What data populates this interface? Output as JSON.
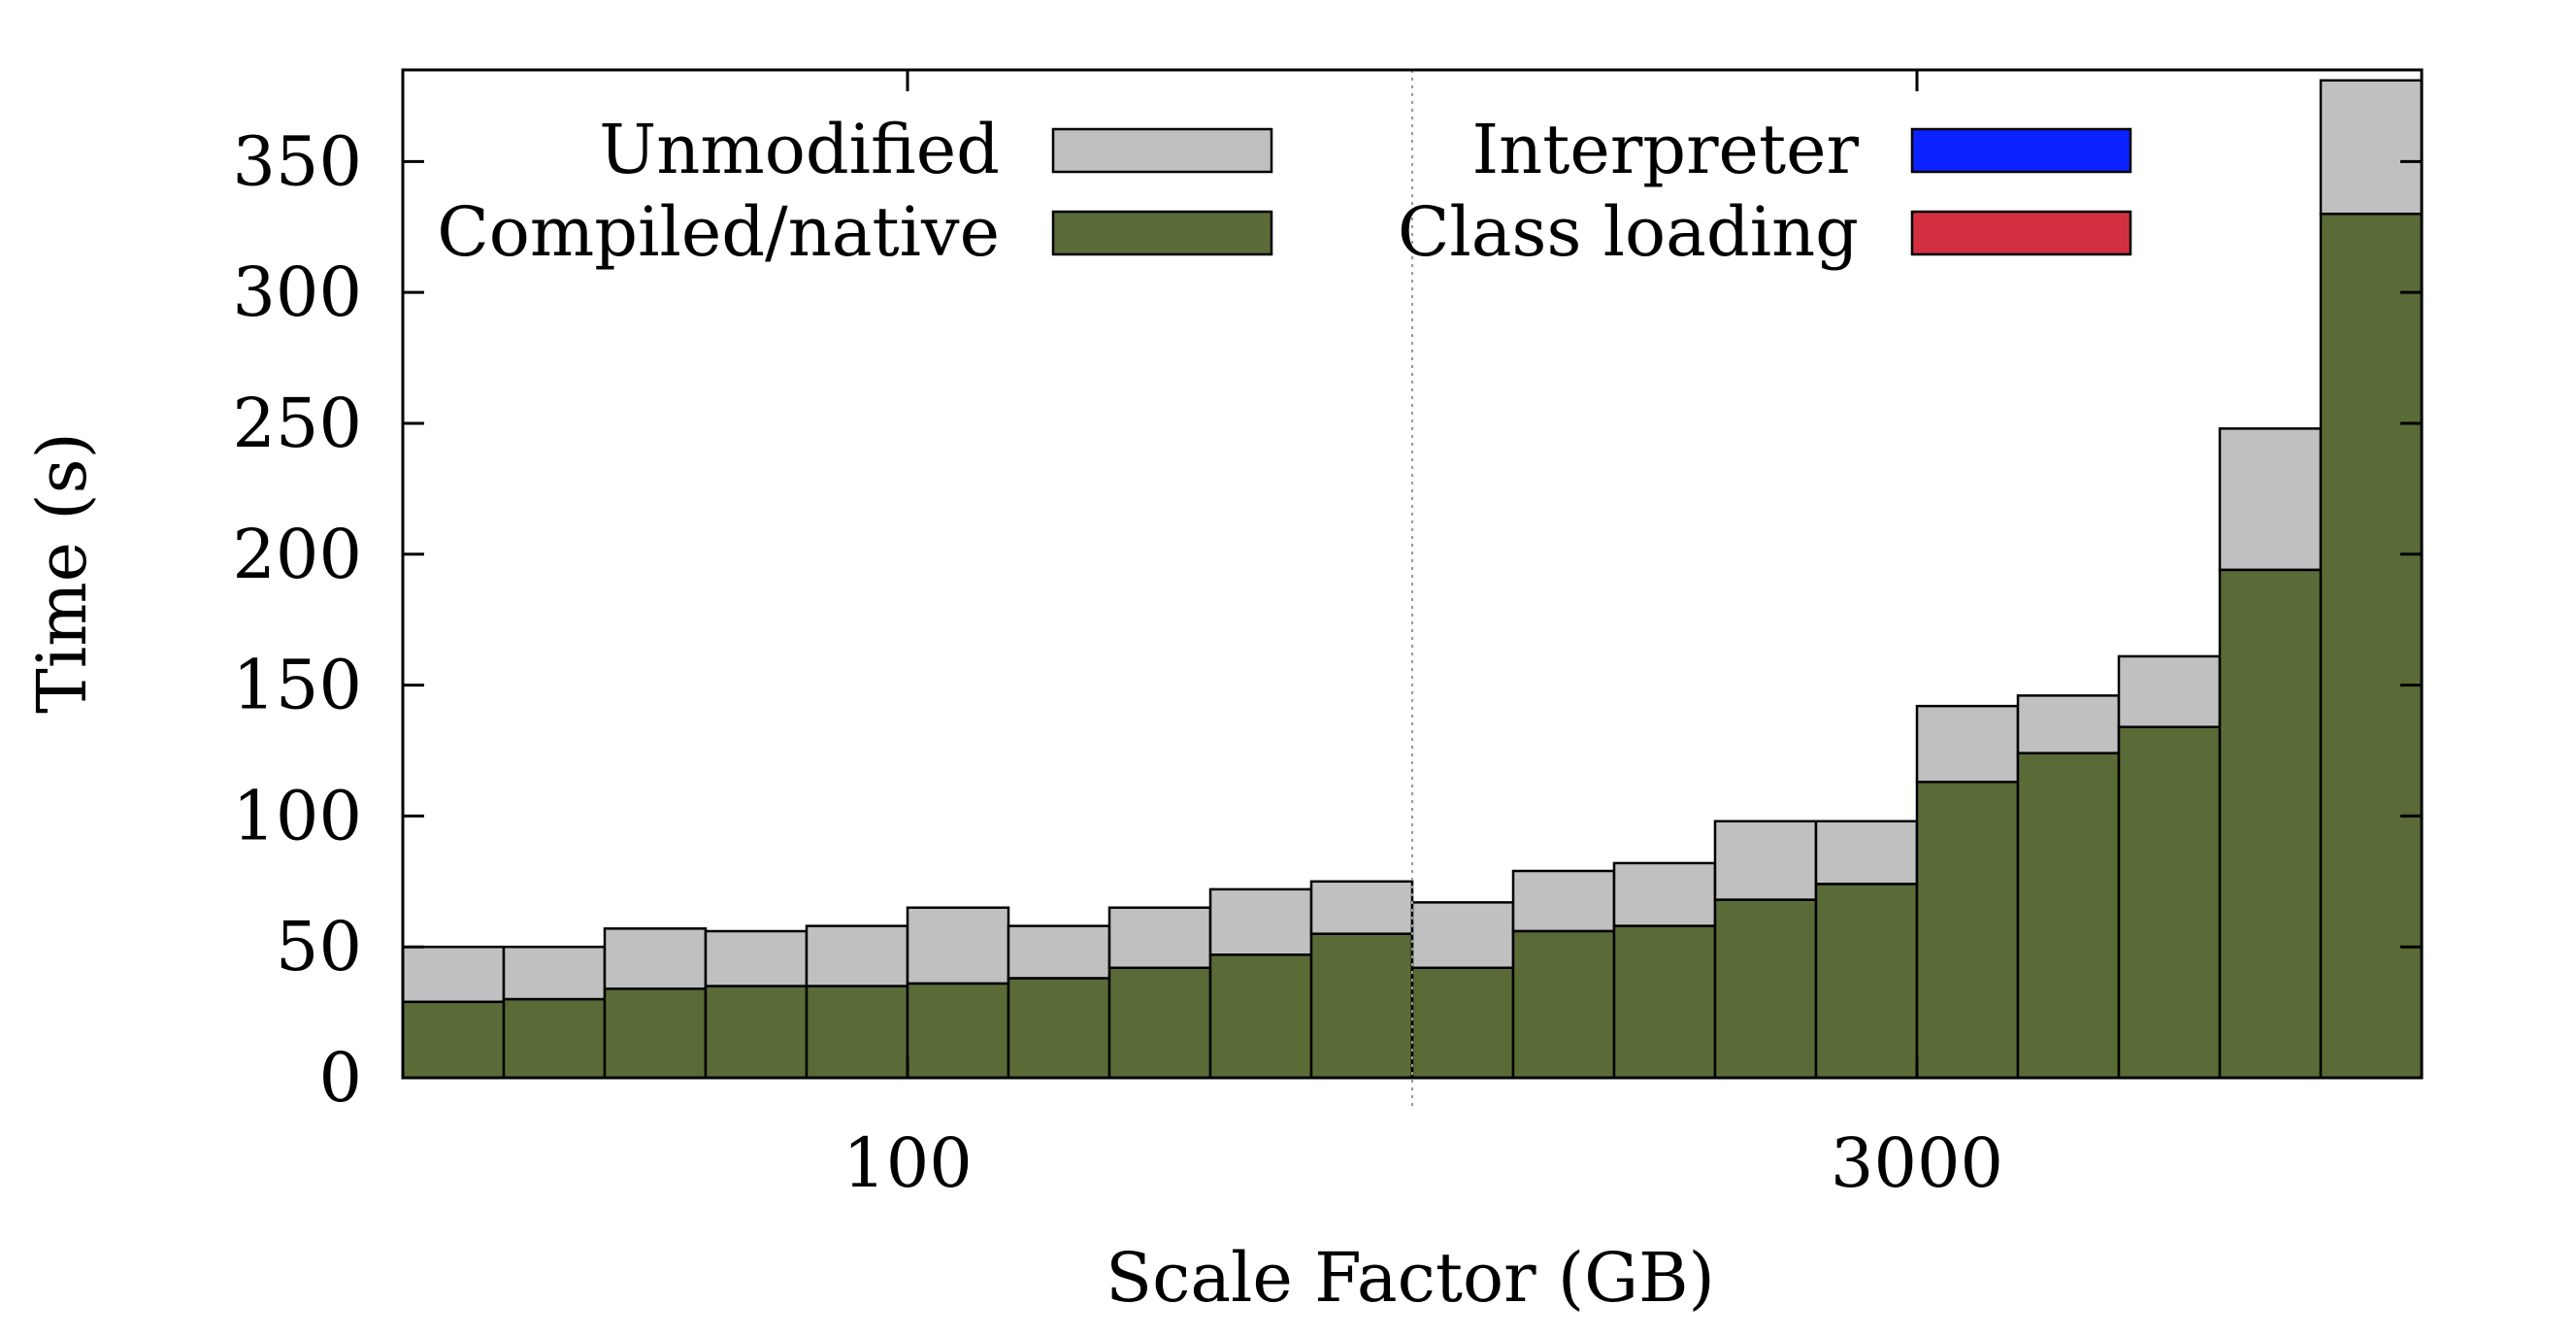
{
  "chart_data": {
    "type": "bar",
    "stacked": true,
    "xlabel": "Scale Factor (GB)",
    "ylabel": "Time (s)",
    "ylim": [
      0,
      385
    ],
    "yticks": [
      0,
      50,
      100,
      150,
      200,
      250,
      300,
      350
    ],
    "grid": false,
    "legend_position": "top",
    "groups": [
      {
        "label": "100",
        "bars": 10
      },
      {
        "label": "3000",
        "bars": 10
      }
    ],
    "series": [
      {
        "name": "Compiled/native",
        "color": "#5a6b37",
        "values": [
          29,
          30,
          34,
          35,
          35,
          36,
          38,
          42,
          47,
          55,
          42,
          56,
          58,
          68,
          74,
          113,
          124,
          134,
          194,
          330
        ]
      },
      {
        "name": "Unmodified",
        "color": "#c0c0c0",
        "values": [
          50,
          50,
          57,
          56,
          58,
          65,
          58,
          65,
          72,
          75,
          67,
          79,
          82,
          98,
          98,
          142,
          146,
          161,
          248,
          381
        ]
      },
      {
        "name": "Interpreter",
        "color": "#0a22ff",
        "values": []
      },
      {
        "name": "Class loading",
        "color": "#d23040",
        "values": []
      }
    ],
    "legend": [
      {
        "label": "Unmodified",
        "color": "#c0c0c0"
      },
      {
        "label": "Compiled/native",
        "color": "#5a6b37"
      },
      {
        "label": "Interpreter",
        "color": "#0a22ff"
      },
      {
        "label": "Class loading",
        "color": "#d23040"
      }
    ]
  }
}
